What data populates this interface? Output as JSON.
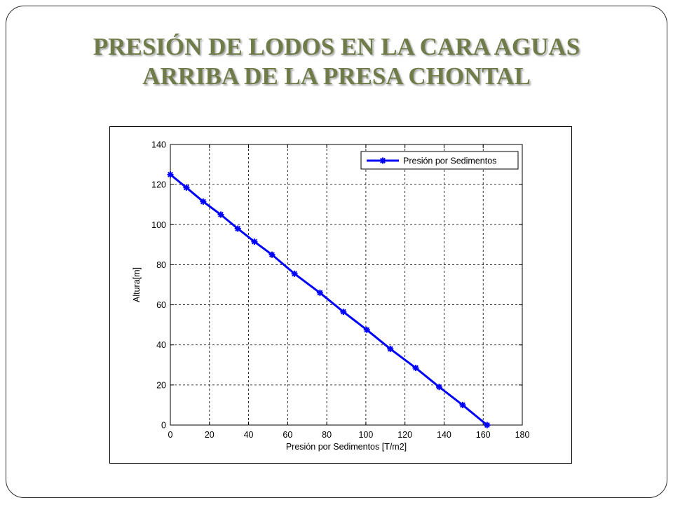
{
  "slide": {
    "title_line1": "PRESIÓN DE LODOS EN LA CARA AGUAS",
    "title_line2": "ARRIBA DE LA PRESA CHONTAL"
  },
  "colors": {
    "title": "#707b4a",
    "series": "#0000ff",
    "frame": "#2b2b2b"
  },
  "chart_data": {
    "type": "line",
    "title": "",
    "xlabel": "Presión por Sedimentos [T/m2]",
    "ylabel": "Altura[m]",
    "xlim": [
      0,
      180
    ],
    "ylim": [
      0,
      140
    ],
    "xticks": [
      0,
      20,
      40,
      60,
      80,
      100,
      120,
      140,
      160,
      180
    ],
    "yticks": [
      0,
      20,
      40,
      60,
      80,
      100,
      120,
      140
    ],
    "grid": true,
    "legend_position": "top-right",
    "series": [
      {
        "name": "Presión por Sedimentos",
        "color": "#0000ff",
        "marker": "star",
        "x": [
          0,
          8.2,
          16.8,
          25.8,
          34.5,
          43,
          52,
          63.5,
          76.5,
          88.5,
          100.5,
          112.5,
          125.5,
          137.5,
          149.5,
          162
        ],
        "y": [
          125,
          118.5,
          111.5,
          105,
          98,
          91.5,
          85,
          75.5,
          66,
          56.5,
          47.5,
          38,
          28.5,
          19,
          10,
          0
        ]
      }
    ]
  }
}
